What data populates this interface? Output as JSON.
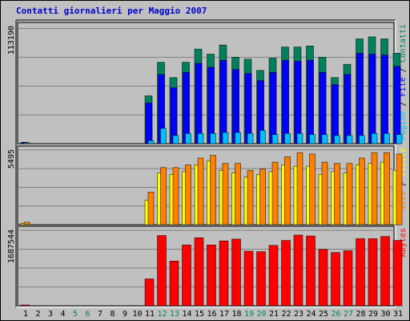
{
  "title": "Contatti giornalieri per Maggio 2007",
  "colors": {
    "hits": "#00805c",
    "files": "#0000ff",
    "pages": "#00c0ff",
    "visits": "#ffff00",
    "sites": "#ff8000",
    "kbytes": "#ff0000",
    "weekend": "#00805c",
    "weekday": "#000000",
    "background": "#c0c0c0",
    "title": "#0000cc"
  },
  "chart_data": [
    {
      "type": "bar",
      "panel": "hits-files-pages",
      "ymax_label": "113190",
      "ylim": [
        0,
        113190
      ],
      "legend": [
        {
          "text": "Pagine",
          "color": "#00c0ff"
        },
        {
          "text": " / ",
          "color": "#000000"
        },
        {
          "text": "File",
          "color": "#0000ff"
        },
        {
          "text": " / ",
          "color": "#000000"
        },
        {
          "text": "Contatti",
          "color": "#00805c"
        }
      ],
      "categories": [
        "1",
        "2",
        "3",
        "4",
        "5",
        "6",
        "7",
        "8",
        "9",
        "10",
        "11",
        "12",
        "13",
        "14",
        "15",
        "16",
        "17",
        "18",
        "19",
        "20",
        "21",
        "22",
        "23",
        "24",
        "25",
        "26",
        "27",
        "28",
        "29",
        "30",
        "31"
      ],
      "series": [
        {
          "name": "Contatti",
          "values": [
            1300,
            0,
            0,
            0,
            0,
            0,
            0,
            0,
            0,
            0,
            47000,
            80000,
            65000,
            80000,
            93000,
            88000,
            97000,
            85000,
            83000,
            72000,
            84000,
            95000,
            95000,
            96000,
            85000,
            65000,
            78000,
            103000,
            105000,
            103000,
            89000
          ]
        },
        {
          "name": "File",
          "values": [
            1000,
            0,
            0,
            0,
            0,
            0,
            0,
            0,
            0,
            0,
            40000,
            68000,
            55000,
            70000,
            79000,
            75000,
            82000,
            73000,
            69000,
            62000,
            70000,
            82000,
            81000,
            82000,
            70000,
            58000,
            68000,
            89000,
            88000,
            87000,
            76000
          ]
        },
        {
          "name": "Pagine",
          "values": [
            200,
            0,
            0,
            0,
            0,
            0,
            0,
            0,
            0,
            0,
            3000,
            15000,
            8000,
            10000,
            10000,
            10000,
            11000,
            11000,
            10000,
            13000,
            9000,
            10000,
            10000,
            9000,
            9000,
            8000,
            8000,
            8000,
            10000,
            10000,
            9000
          ]
        }
      ]
    },
    {
      "type": "bar",
      "panel": "sites-visits",
      "ymax_label": "5495",
      "ylim": [
        0,
        5495
      ],
      "legend": [
        {
          "text": "Siti",
          "color": "#ff8000"
        },
        {
          "text": " / ",
          "color": "#000000"
        },
        {
          "text": "Visite",
          "color": "#ffff00"
        }
      ],
      "categories": [
        "1",
        "2",
        "3",
        "4",
        "5",
        "6",
        "7",
        "8",
        "9",
        "10",
        "11",
        "12",
        "13",
        "14",
        "15",
        "16",
        "17",
        "18",
        "19",
        "20",
        "21",
        "22",
        "23",
        "24",
        "25",
        "26",
        "27",
        "28",
        "29",
        "30",
        "31"
      ],
      "series": [
        {
          "name": "Visite",
          "values": [
            100,
            0,
            0,
            0,
            0,
            0,
            0,
            0,
            0,
            0,
            1800,
            3800,
            3700,
            3900,
            4400,
            4700,
            4000,
            3800,
            3500,
            3700,
            3900,
            4400,
            4300,
            4300,
            3700,
            3900,
            3800,
            4400,
            4500,
            4600,
            4000
          ]
        },
        {
          "name": "Siti",
          "values": [
            180,
            0,
            0,
            0,
            0,
            0,
            0,
            0,
            0,
            0,
            2400,
            4200,
            4200,
            4400,
            4900,
            5100,
            4500,
            4500,
            4000,
            4100,
            4600,
            5000,
            5300,
            5200,
            4600,
            4500,
            4500,
            4900,
            5300,
            5300,
            5200
          ]
        }
      ]
    },
    {
      "type": "bar",
      "panel": "kbytes",
      "ymax_label": "1687544",
      "ylim": [
        0,
        1687544
      ],
      "legend": [
        {
          "text": "KBytes",
          "color": "#ff0000"
        }
      ],
      "categories": [
        "1",
        "2",
        "3",
        "4",
        "5",
        "6",
        "7",
        "8",
        "9",
        "10",
        "11",
        "12",
        "13",
        "14",
        "15",
        "16",
        "17",
        "18",
        "19",
        "20",
        "21",
        "22",
        "23",
        "24",
        "25",
        "26",
        "27",
        "28",
        "29",
        "30",
        "31"
      ],
      "series": [
        {
          "name": "KBytes",
          "values": [
            15000,
            0,
            0,
            0,
            0,
            0,
            0,
            0,
            0,
            0,
            600000,
            1570000,
            1000000,
            1360000,
            1520000,
            1360000,
            1450000,
            1490000,
            1220000,
            1210000,
            1350000,
            1460000,
            1580000,
            1560000,
            1260000,
            1190000,
            1230000,
            1500000,
            1500000,
            1550000,
            1460000
          ]
        }
      ]
    }
  ],
  "x_axis": {
    "days": [
      "1",
      "2",
      "3",
      "4",
      "5",
      "6",
      "7",
      "8",
      "9",
      "10",
      "11",
      "12",
      "13",
      "14",
      "15",
      "16",
      "17",
      "18",
      "19",
      "20",
      "21",
      "22",
      "23",
      "24",
      "25",
      "26",
      "27",
      "28",
      "29",
      "30",
      "31"
    ],
    "weekend_days": [
      "5",
      "6",
      "12",
      "13",
      "19",
      "20",
      "26",
      "27"
    ]
  }
}
